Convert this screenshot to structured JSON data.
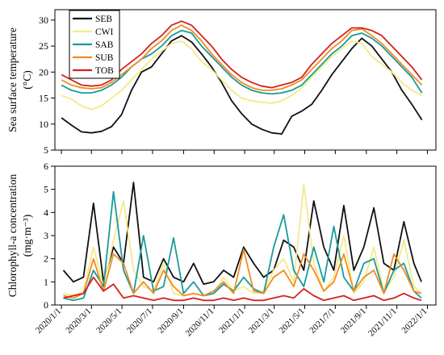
{
  "chart_data": [
    {
      "type": "line",
      "ylabel_lines": [
        "Sea surface temperature",
        "(°C)"
      ],
      "ylim": [
        5,
        32
      ],
      "yticks": [
        5,
        10,
        15,
        20,
        25,
        30
      ],
      "grid": false,
      "legend": "top-left",
      "series": [
        {
          "name": "SEB",
          "color": "#111111",
          "x": [
            "2020-01-01",
            "2020-01-21",
            "2020-02-10",
            "2020-03-01",
            "2020-03-21",
            "2020-04-10",
            "2020-04-30",
            "2020-05-20",
            "2020-06-09",
            "2020-06-29",
            "2020-07-19",
            "2020-08-08",
            "2020-08-28",
            "2020-09-17",
            "2020-10-07",
            "2020-10-27",
            "2020-11-16",
            "2020-12-06",
            "2020-12-26",
            "2021-01-15",
            "2021-02-04",
            "2021-02-24",
            "2021-03-16",
            "2021-04-05",
            "2021-04-25",
            "2021-05-15",
            "2021-06-04",
            "2021-06-24",
            "2021-07-14",
            "2021-08-03",
            "2021-08-23",
            "2021-09-12",
            "2021-10-02",
            "2021-10-22",
            "2021-11-11",
            "2021-12-01",
            "2021-12-21"
          ],
          "y": [
            11.2,
            9.8,
            8.5,
            8.3,
            8.6,
            9.5,
            11.8,
            16.5,
            20.0,
            21.0,
            23.5,
            26.0,
            27.0,
            25.8,
            23.5,
            21.0,
            18.0,
            14.5,
            12.0,
            10.0,
            9.0,
            8.3,
            8.1,
            11.5,
            12.5,
            13.8,
            16.5,
            19.5,
            22.0,
            24.5,
            26.5,
            25.0,
            22.5,
            20.0,
            16.5,
            13.8,
            10.8
          ]
        },
        {
          "name": "CWI",
          "color": "#f2ea8a",
          "x": [
            "2020-01-01",
            "2020-01-21",
            "2020-02-10",
            "2020-03-01",
            "2020-03-21",
            "2020-04-10",
            "2020-04-30",
            "2020-05-20",
            "2020-06-09",
            "2020-06-29",
            "2020-07-19",
            "2020-08-08",
            "2020-08-28",
            "2020-09-17",
            "2020-10-07",
            "2020-10-27",
            "2020-11-16",
            "2020-12-06",
            "2020-12-26",
            "2021-01-15",
            "2021-02-04",
            "2021-02-24",
            "2021-03-16",
            "2021-04-05",
            "2021-04-25",
            "2021-05-15",
            "2021-06-04",
            "2021-06-24",
            "2021-07-14",
            "2021-08-03",
            "2021-08-23",
            "2021-09-12",
            "2021-10-02",
            "2021-10-22",
            "2021-11-11",
            "2021-12-01",
            "2021-12-21"
          ],
          "y": [
            15.5,
            14.8,
            13.5,
            12.8,
            13.5,
            15.0,
            16.5,
            18.5,
            20.5,
            22.5,
            24.0,
            25.5,
            26.0,
            24.5,
            22.0,
            20.5,
            18.5,
            16.5,
            15.0,
            14.5,
            14.2,
            14.0,
            14.5,
            15.5,
            17.0,
            19.0,
            21.0,
            23.0,
            24.5,
            26.0,
            25.5,
            23.0,
            21.5,
            20.0,
            18.0,
            16.5,
            15.5
          ]
        },
        {
          "name": "SAB",
          "color": "#1a9a9a",
          "x": [
            "2020-01-01",
            "2020-01-21",
            "2020-02-10",
            "2020-03-01",
            "2020-03-21",
            "2020-04-10",
            "2020-04-30",
            "2020-05-20",
            "2020-06-09",
            "2020-06-29",
            "2020-07-19",
            "2020-08-08",
            "2020-08-28",
            "2020-09-17",
            "2020-10-07",
            "2020-10-27",
            "2020-11-16",
            "2020-12-06",
            "2020-12-26",
            "2021-01-15",
            "2021-02-04",
            "2021-02-24",
            "2021-03-16",
            "2021-04-05",
            "2021-04-25",
            "2021-05-15",
            "2021-06-04",
            "2021-06-24",
            "2021-07-14",
            "2021-08-03",
            "2021-08-23",
            "2021-09-12",
            "2021-10-02",
            "2021-10-22",
            "2021-11-11",
            "2021-12-01",
            "2021-12-21"
          ],
          "y": [
            17.5,
            16.5,
            16.0,
            16.0,
            16.5,
            17.5,
            19.0,
            21.0,
            22.5,
            23.5,
            25.0,
            27.0,
            28.0,
            27.5,
            25.0,
            23.0,
            21.0,
            19.0,
            17.5,
            16.5,
            16.0,
            15.8,
            16.0,
            16.5,
            17.5,
            19.5,
            21.5,
            23.5,
            25.0,
            27.0,
            27.5,
            26.5,
            25.0,
            23.0,
            21.0,
            19.0,
            16.0
          ]
        },
        {
          "name": "SUB",
          "color": "#f28c1e",
          "x": [
            "2020-01-01",
            "2020-01-21",
            "2020-02-10",
            "2020-03-01",
            "2020-03-21",
            "2020-04-10",
            "2020-04-30",
            "2020-05-20",
            "2020-06-09",
            "2020-06-29",
            "2020-07-19",
            "2020-08-08",
            "2020-08-28",
            "2020-09-17",
            "2020-10-07",
            "2020-10-27",
            "2020-11-16",
            "2020-12-06",
            "2020-12-26",
            "2021-01-15",
            "2021-02-04",
            "2021-02-24",
            "2021-03-16",
            "2021-04-05",
            "2021-04-25",
            "2021-05-15",
            "2021-06-04",
            "2021-06-24",
            "2021-07-14",
            "2021-08-03",
            "2021-08-23",
            "2021-09-12",
            "2021-10-02",
            "2021-10-22",
            "2021-11-11",
            "2021-12-01",
            "2021-12-21"
          ],
          "y": [
            18.5,
            17.5,
            17.0,
            16.8,
            17.0,
            18.0,
            19.5,
            21.0,
            22.5,
            24.5,
            26.0,
            28.0,
            29.0,
            28.0,
            26.0,
            23.5,
            21.5,
            19.5,
            18.0,
            17.0,
            16.5,
            16.5,
            16.8,
            17.5,
            18.5,
            20.5,
            22.5,
            24.5,
            26.0,
            28.0,
            28.3,
            27.0,
            25.5,
            23.5,
            21.5,
            19.5,
            17.5
          ]
        },
        {
          "name": "TOB",
          "color": "#d62020",
          "x": [
            "2020-01-01",
            "2020-01-21",
            "2020-02-10",
            "2020-03-01",
            "2020-03-21",
            "2020-04-10",
            "2020-04-30",
            "2020-05-20",
            "2020-06-09",
            "2020-06-29",
            "2020-07-19",
            "2020-08-08",
            "2020-08-28",
            "2020-09-17",
            "2020-10-07",
            "2020-10-27",
            "2020-11-16",
            "2020-12-06",
            "2020-12-26",
            "2021-01-15",
            "2021-02-04",
            "2021-02-24",
            "2021-03-16",
            "2021-04-05",
            "2021-04-25",
            "2021-05-15",
            "2021-06-04",
            "2021-06-24",
            "2021-07-14",
            "2021-08-03",
            "2021-08-23",
            "2021-09-12",
            "2021-10-02",
            "2021-10-22",
            "2021-11-11",
            "2021-12-01",
            "2021-12-21"
          ],
          "y": [
            19.5,
            18.5,
            17.5,
            17.3,
            17.5,
            18.5,
            20.5,
            22.0,
            23.5,
            25.5,
            27.0,
            29.0,
            29.8,
            29.0,
            27.0,
            25.0,
            22.5,
            20.5,
            19.0,
            18.0,
            17.3,
            17.0,
            17.5,
            18.0,
            19.0,
            21.5,
            23.5,
            25.5,
            27.0,
            28.5,
            28.5,
            28.0,
            27.0,
            25.0,
            23.0,
            21.0,
            18.5
          ]
        }
      ]
    },
    {
      "type": "line",
      "ylabel_lines": [
        "Chlorophyll-a concentration",
        "(mg·m⁻³)"
      ],
      "ylim": [
        0,
        6
      ],
      "yticks": [
        0,
        1,
        2,
        3,
        4,
        5,
        6
      ],
      "grid": false,
      "xticks": [
        "2020/1/1",
        "2020/3/1",
        "2020/5/1",
        "2020/7/1",
        "2020/9/1",
        "2020/11/1",
        "2021/1/1",
        "2021/3/1",
        "2021/5/1",
        "2021/7/1",
        "2021/9/1",
        "2021/11/1",
        "2022/1/1"
      ],
      "series": [
        {
          "name": "SEB",
          "color": "#111111",
          "x": [
            "2020-01-05",
            "2020-01-25",
            "2020-02-14",
            "2020-03-05",
            "2020-03-25",
            "2020-04-14",
            "2020-05-04",
            "2020-05-24",
            "2020-06-13",
            "2020-07-03",
            "2020-07-23",
            "2020-08-12",
            "2020-09-01",
            "2020-09-21",
            "2020-10-11",
            "2020-10-31",
            "2020-11-20",
            "2020-12-10",
            "2020-12-30",
            "2021-01-19",
            "2021-02-08",
            "2021-02-28",
            "2021-03-20",
            "2021-04-09",
            "2021-04-29",
            "2021-05-19",
            "2021-06-08",
            "2021-06-28",
            "2021-07-18",
            "2021-08-07",
            "2021-08-27",
            "2021-09-16",
            "2021-10-06",
            "2021-10-26",
            "2021-11-15",
            "2021-12-05",
            "2021-12-20"
          ],
          "y": [
            1.5,
            1.0,
            1.2,
            4.4,
            1.0,
            2.5,
            1.8,
            5.3,
            1.2,
            1.0,
            2.0,
            1.2,
            1.0,
            1.8,
            0.9,
            1.0,
            1.5,
            1.2,
            2.5,
            1.8,
            1.2,
            1.5,
            2.8,
            2.5,
            1.5,
            4.5,
            2.5,
            1.5,
            4.3,
            1.5,
            2.5,
            4.2,
            1.8,
            1.5,
            3.6,
            1.8,
            1.0
          ]
        },
        {
          "name": "CWI",
          "color": "#f2ea8a",
          "x": [
            "2020-01-05",
            "2020-01-25",
            "2020-02-14",
            "2020-03-05",
            "2020-03-25",
            "2020-04-14",
            "2020-05-04",
            "2020-05-24",
            "2020-06-13",
            "2020-07-03",
            "2020-07-23",
            "2020-08-12",
            "2020-09-01",
            "2020-09-21",
            "2020-10-11",
            "2020-10-31",
            "2020-11-20",
            "2020-12-10",
            "2020-12-30",
            "2021-01-19",
            "2021-02-08",
            "2021-02-28",
            "2021-03-20",
            "2021-04-09",
            "2021-04-29",
            "2021-05-19",
            "2021-06-08",
            "2021-06-28",
            "2021-07-18",
            "2021-08-07",
            "2021-08-27",
            "2021-09-16",
            "2021-10-06",
            "2021-10-26",
            "2021-11-15",
            "2021-12-05",
            "2021-12-20"
          ],
          "y": [
            0.5,
            0.4,
            0.6,
            2.5,
            0.8,
            2.8,
            4.5,
            1.5,
            0.8,
            0.6,
            1.8,
            0.5,
            0.4,
            0.5,
            0.4,
            0.5,
            1.2,
            0.6,
            0.8,
            0.5,
            0.6,
            1.5,
            2.0,
            1.0,
            5.2,
            1.8,
            0.6,
            1.2,
            3.0,
            0.5,
            1.0,
            2.5,
            0.6,
            1.2,
            2.8,
            0.8,
            0.5
          ]
        },
        {
          "name": "SAB",
          "color": "#1a9a9a",
          "x": [
            "2020-01-05",
            "2020-01-25",
            "2020-02-14",
            "2020-03-05",
            "2020-03-25",
            "2020-04-14",
            "2020-05-04",
            "2020-05-24",
            "2020-06-13",
            "2020-07-03",
            "2020-07-23",
            "2020-08-12",
            "2020-09-01",
            "2020-09-21",
            "2020-10-11",
            "2020-10-31",
            "2020-11-20",
            "2020-12-10",
            "2020-12-30",
            "2021-01-19",
            "2021-02-08",
            "2021-02-28",
            "2021-03-20",
            "2021-04-09",
            "2021-04-29",
            "2021-05-19",
            "2021-06-08",
            "2021-06-28",
            "2021-07-18",
            "2021-08-07",
            "2021-08-27",
            "2021-09-16",
            "2021-10-06",
            "2021-10-26",
            "2021-11-15",
            "2021-12-05",
            "2021-12-20"
          ],
          "y": [
            0.3,
            0.2,
            0.3,
            1.5,
            0.8,
            4.9,
            1.5,
            0.5,
            3.0,
            0.6,
            0.8,
            2.9,
            0.5,
            1.0,
            0.4,
            0.5,
            0.9,
            0.6,
            1.2,
            0.7,
            0.5,
            2.5,
            3.9,
            1.5,
            0.8,
            2.5,
            1.0,
            3.4,
            1.2,
            0.6,
            1.8,
            2.0,
            0.5,
            1.5,
            1.8,
            0.6,
            0.3
          ]
        },
        {
          "name": "SUB",
          "color": "#f28c1e",
          "x": [
            "2020-01-05",
            "2020-01-25",
            "2020-02-14",
            "2020-03-05",
            "2020-03-25",
            "2020-04-14",
            "2020-05-04",
            "2020-05-24",
            "2020-06-13",
            "2020-07-03",
            "2020-07-23",
            "2020-08-12",
            "2020-09-01",
            "2020-09-21",
            "2020-10-11",
            "2020-10-31",
            "2020-11-20",
            "2020-12-10",
            "2020-12-30",
            "2021-01-19",
            "2021-02-08",
            "2021-02-28",
            "2021-03-20",
            "2021-04-09",
            "2021-04-29",
            "2021-05-19",
            "2021-06-08",
            "2021-06-28",
            "2021-07-18",
            "2021-08-07",
            "2021-08-27",
            "2021-09-16",
            "2021-10-06",
            "2021-10-26",
            "2021-11-15",
            "2021-12-05",
            "2021-12-20"
          ],
          "y": [
            0.4,
            0.3,
            0.5,
            2.0,
            0.6,
            2.2,
            1.8,
            0.5,
            1.0,
            0.5,
            1.5,
            0.8,
            0.4,
            0.5,
            0.4,
            0.6,
            1.0,
            0.5,
            2.4,
            0.6,
            0.5,
            1.2,
            1.5,
            0.8,
            2.2,
            1.5,
            0.6,
            1.0,
            2.2,
            0.6,
            1.2,
            1.5,
            0.5,
            2.2,
            1.5,
            0.6,
            0.5
          ]
        },
        {
          "name": "TOB",
          "color": "#d62020",
          "x": [
            "2020-01-05",
            "2020-01-25",
            "2020-02-14",
            "2020-03-05",
            "2020-03-25",
            "2020-04-14",
            "2020-05-04",
            "2020-05-24",
            "2020-06-13",
            "2020-07-03",
            "2020-07-23",
            "2020-08-12",
            "2020-09-01",
            "2020-09-21",
            "2020-10-11",
            "2020-10-31",
            "2020-11-20",
            "2020-12-10",
            "2020-12-30",
            "2021-01-19",
            "2021-02-08",
            "2021-02-28",
            "2021-03-20",
            "2021-04-09",
            "2021-04-29",
            "2021-05-19",
            "2021-06-08",
            "2021-06-28",
            "2021-07-18",
            "2021-08-07",
            "2021-08-27",
            "2021-09-16",
            "2021-10-06",
            "2021-10-26",
            "2021-11-15",
            "2021-12-05",
            "2021-12-20"
          ],
          "y": [
            0.3,
            0.4,
            0.5,
            1.2,
            0.6,
            0.9,
            0.3,
            0.4,
            0.3,
            0.2,
            0.3,
            0.2,
            0.2,
            0.3,
            0.2,
            0.2,
            0.3,
            0.2,
            0.3,
            0.2,
            0.2,
            0.3,
            0.4,
            0.3,
            0.7,
            0.4,
            0.2,
            0.3,
            0.4,
            0.2,
            0.3,
            0.4,
            0.2,
            0.3,
            0.5,
            0.3,
            0.2
          ]
        }
      ]
    }
  ]
}
